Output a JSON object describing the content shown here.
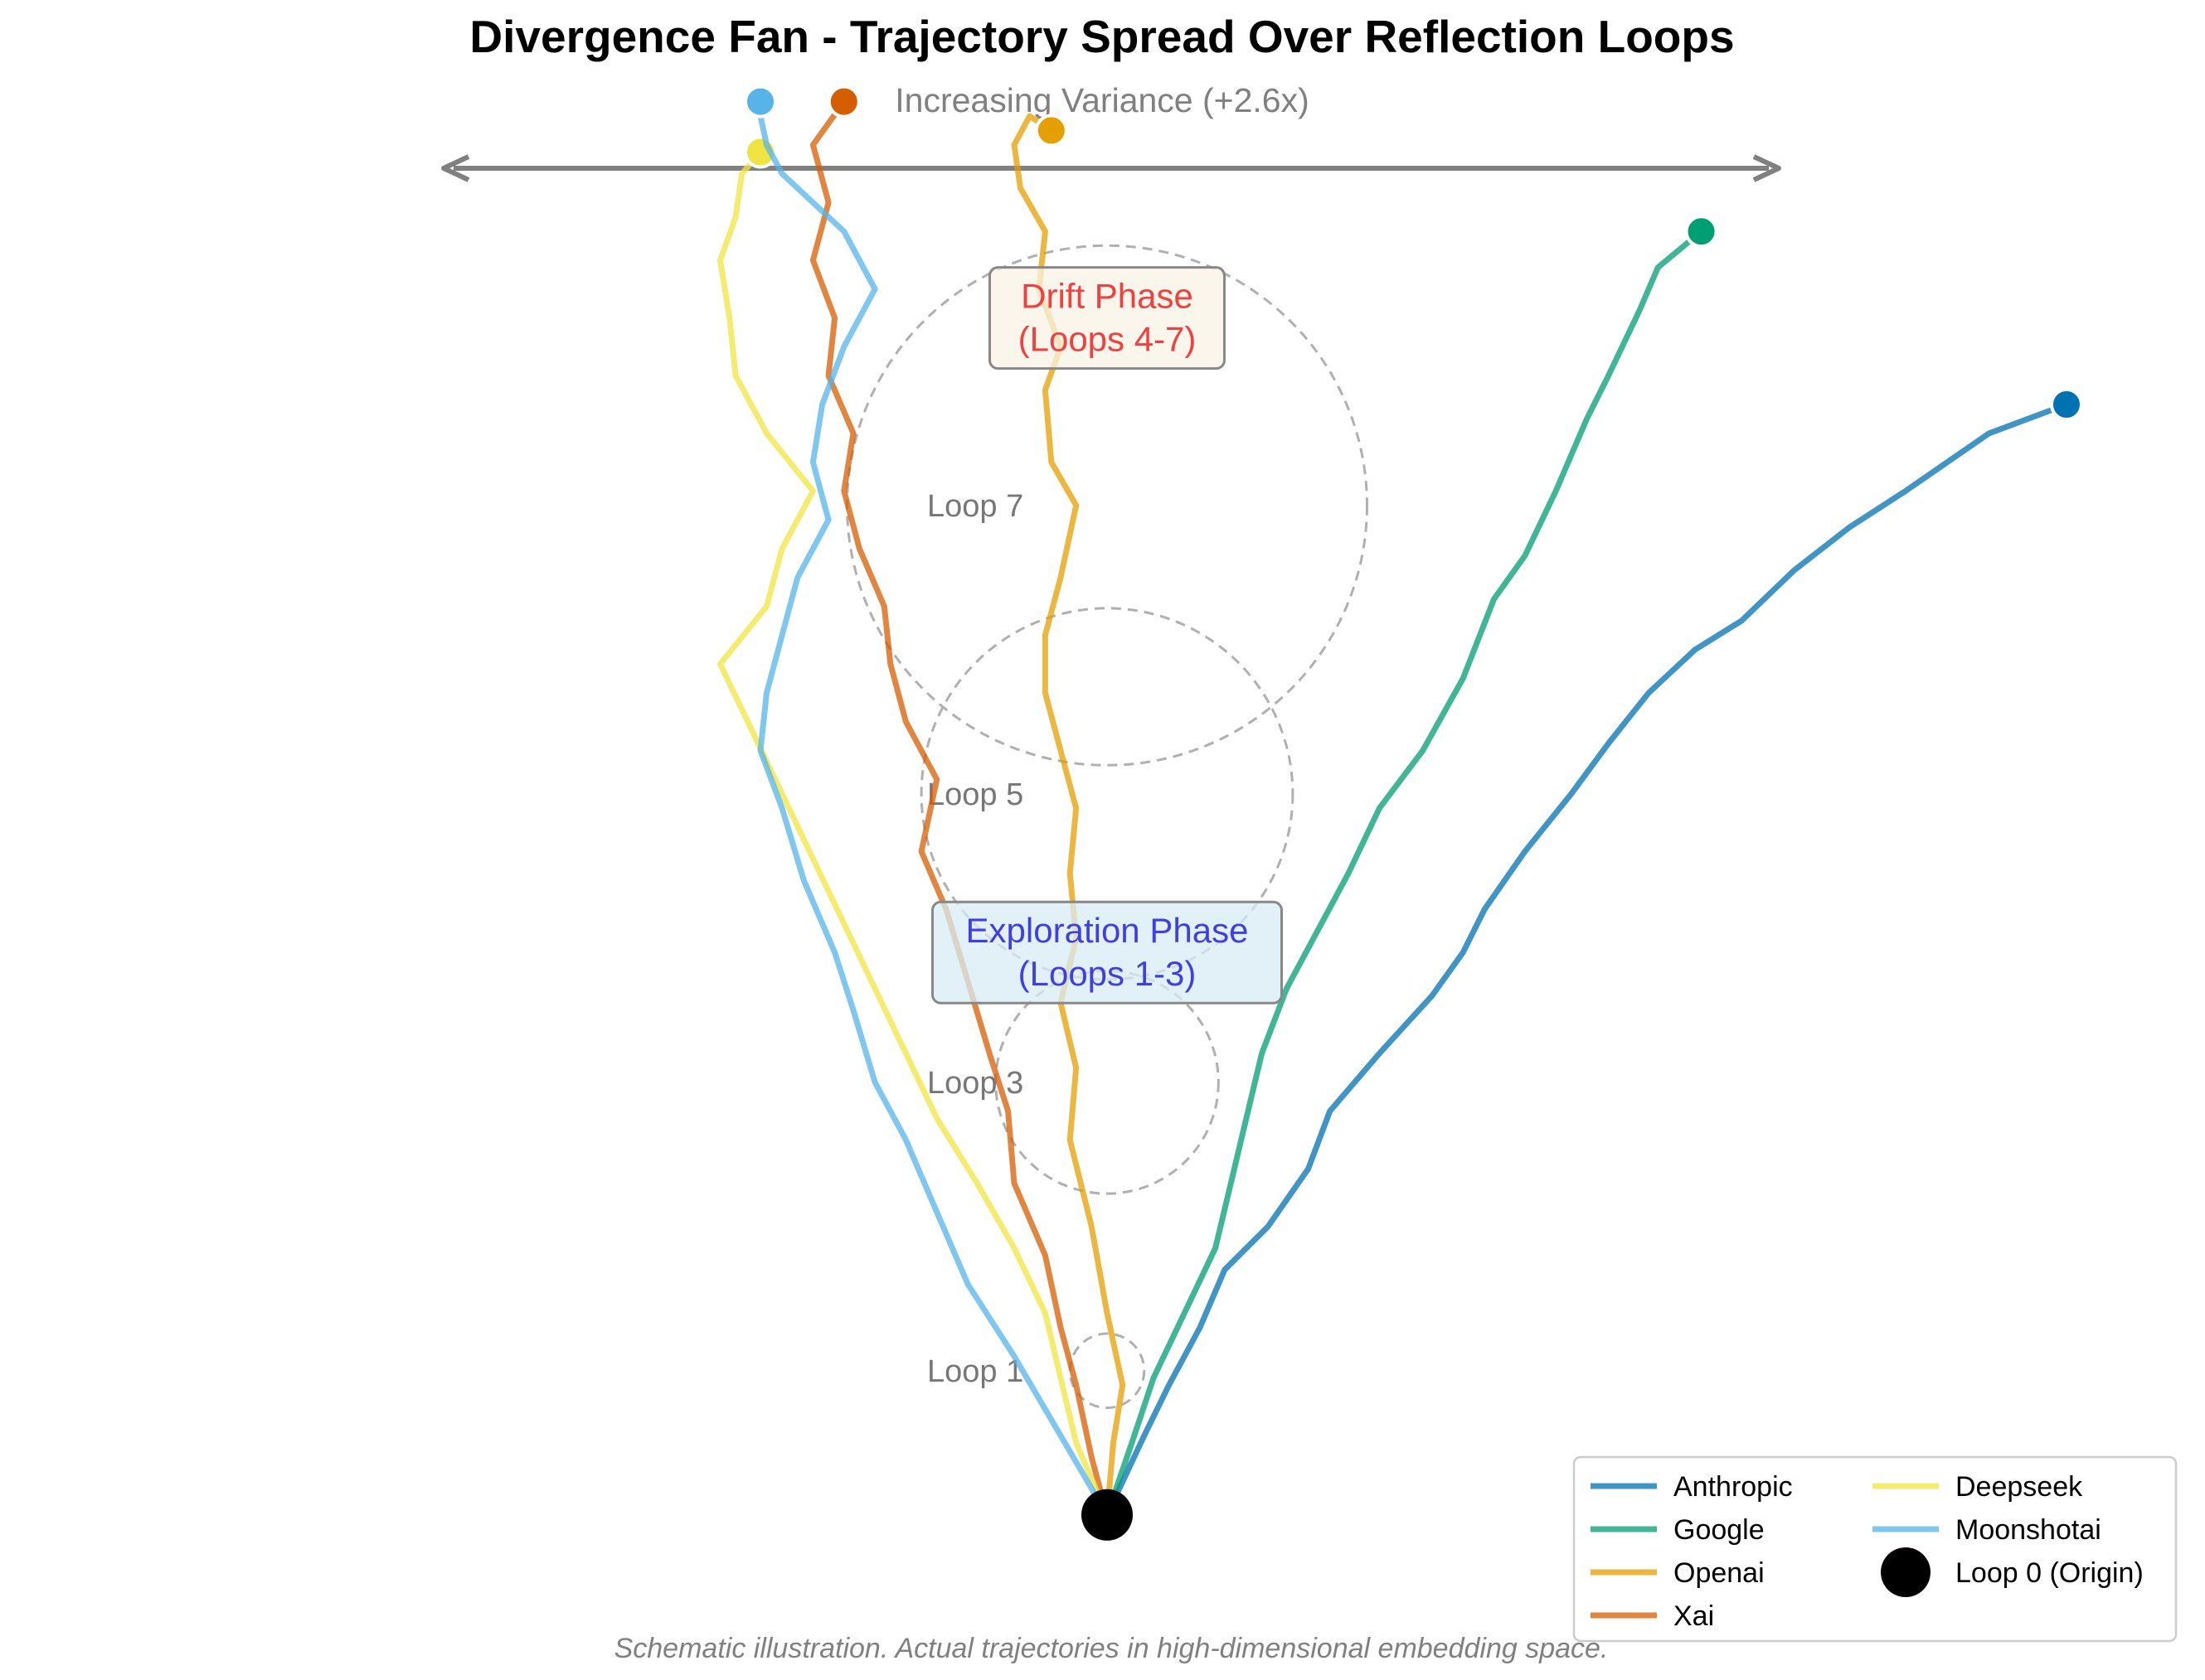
{
  "chart_data": {
    "type": "line",
    "title": "Divergence Fan - Trajectory Spread Over Reflection Loops",
    "xlabel": "",
    "ylabel": "",
    "grid": false,
    "axes_visible": false,
    "legend_position": "lower-right",
    "variance_arrow_label": "Increasing Variance (+2.6x)",
    "caption": "Schematic illustration. Actual trajectories in high-dimensional embedding space.",
    "origin": {
      "label": "Loop 0 (Origin)",
      "x": 0,
      "y": 0
    },
    "loop_markers": [
      {
        "label": "Loop 1",
        "y": 1,
        "spread": 0.12
      },
      {
        "label": "Loop 3",
        "y": 3,
        "spread": 0.36
      },
      {
        "label": "Loop 5",
        "y": 5,
        "spread": 0.6
      },
      {
        "label": "Loop 7",
        "y": 7,
        "spread": 0.84
      }
    ],
    "phase_annotations": [
      {
        "label": "Exploration Phase\n(Loops 1-3)",
        "x": 0,
        "y": 3.9,
        "color": "#4040e0",
        "box_fill": "#d8ecf6"
      },
      {
        "label": "Drift Phase\n(Loops 4-7)",
        "x": 0,
        "y": 8.3,
        "color": "#f04040",
        "box_fill": "#f8f3e6"
      }
    ],
    "xlim": [
      -2.8,
      2.8
    ],
    "ylim": [
      -0.3,
      9.7
    ],
    "series": [
      {
        "name": "Anthropic",
        "color": "#0072b2",
        "x": [
          0,
          0.12,
          0.2,
          0.3,
          0.38,
          0.52,
          0.65,
          0.72,
          0.88,
          1.05,
          1.15,
          1.22,
          1.35,
          1.5,
          1.62,
          1.75,
          1.9,
          2.05,
          2.22,
          2.4,
          2.58,
          2.85,
          3.1
        ],
        "y": [
          0,
          0.55,
          0.9,
          1.3,
          1.7,
          2.0,
          2.4,
          2.8,
          3.2,
          3.6,
          3.9,
          4.2,
          4.6,
          5.0,
          5.35,
          5.7,
          6.0,
          6.2,
          6.55,
          6.85,
          7.1,
          7.5,
          7.7
        ]
      },
      {
        "name": "Google",
        "color": "#009e73",
        "x": [
          0,
          0.08,
          0.15,
          0.25,
          0.35,
          0.4,
          0.45,
          0.5,
          0.58,
          0.68,
          0.78,
          0.88,
          1.02,
          1.15,
          1.25,
          1.35,
          1.45,
          1.55,
          1.62,
          1.72,
          1.78,
          1.92
        ],
        "y": [
          0,
          0.5,
          0.95,
          1.4,
          1.85,
          2.3,
          2.75,
          3.2,
          3.65,
          4.05,
          4.45,
          4.9,
          5.3,
          5.8,
          6.35,
          6.65,
          7.1,
          7.6,
          7.9,
          8.35,
          8.65,
          8.9
        ]
      },
      {
        "name": "Openai",
        "color": "#e69f00",
        "x": [
          0,
          0.02,
          0.05,
          0.0,
          -0.05,
          -0.12,
          -0.1,
          -0.15,
          -0.1,
          -0.12,
          -0.1,
          -0.15,
          -0.2,
          -0.2,
          -0.15,
          -0.1,
          -0.18,
          -0.2,
          -0.15,
          -0.22,
          -0.2,
          -0.28,
          -0.3,
          -0.25,
          -0.18
        ],
        "y": [
          0,
          0.5,
          0.9,
          1.4,
          2.0,
          2.6,
          3.1,
          3.55,
          4.0,
          4.45,
          4.9,
          5.3,
          5.7,
          6.1,
          6.5,
          7.0,
          7.3,
          7.8,
          8.1,
          8.5,
          8.9,
          9.2,
          9.5,
          9.7,
          9.6
        ]
      },
      {
        "name": "Xai",
        "color": "#d55e00",
        "x": [
          0,
          -0.05,
          -0.1,
          -0.15,
          -0.2,
          -0.3,
          -0.32,
          -0.38,
          -0.45,
          -0.52,
          -0.6,
          -0.55,
          -0.65,
          -0.7,
          -0.72,
          -0.8,
          -0.85,
          -0.82,
          -0.9,
          -0.88,
          -0.95,
          -0.9,
          -0.95,
          -0.85
        ],
        "y": [
          0,
          0.4,
          0.9,
          1.3,
          1.8,
          2.3,
          2.8,
          3.2,
          3.7,
          4.2,
          4.6,
          5.1,
          5.5,
          5.9,
          6.3,
          6.7,
          7.1,
          7.5,
          7.9,
          8.3,
          8.7,
          9.1,
          9.5,
          9.8
        ]
      },
      {
        "name": "Deepseek",
        "color": "#f0e442",
        "x": [
          0,
          -0.1,
          -0.15,
          -0.2,
          -0.3,
          -0.42,
          -0.55,
          -0.65,
          -0.75,
          -0.85,
          -0.95,
          -1.05,
          -1.15,
          -1.25,
          -1.1,
          -1.05,
          -0.95,
          -1.1,
          -1.2,
          -1.22,
          -1.25,
          -1.2,
          -1.18,
          -1.12
        ],
        "y": [
          0,
          0.5,
          0.95,
          1.4,
          1.85,
          2.3,
          2.75,
          3.2,
          3.65,
          4.1,
          4.55,
          5.0,
          5.45,
          5.9,
          6.3,
          6.7,
          7.1,
          7.5,
          7.9,
          8.3,
          8.7,
          9.0,
          9.3,
          9.45
        ]
      },
      {
        "name": "Moonshotai",
        "color": "#56b4e9",
        "x": [
          0,
          -0.15,
          -0.3,
          -0.45,
          -0.55,
          -0.65,
          -0.75,
          -0.82,
          -0.88,
          -0.98,
          -1.05,
          -1.12,
          -1.1,
          -1.05,
          -1.0,
          -0.9,
          -0.95,
          -0.92,
          -0.85,
          -0.75,
          -0.85,
          -0.95,
          -1.05,
          -1.1,
          -1.12,
          -1.12
        ],
        "y": [
          0,
          0.55,
          1.1,
          1.6,
          2.1,
          2.6,
          3.0,
          3.5,
          3.9,
          4.4,
          4.9,
          5.3,
          5.7,
          6.1,
          6.5,
          6.9,
          7.3,
          7.7,
          8.1,
          8.5,
          8.9,
          9.1,
          9.3,
          9.5,
          9.7,
          9.8
        ]
      }
    ],
    "legend": [
      {
        "label": "Anthropic",
        "color": "#0072b2",
        "kind": "line"
      },
      {
        "label": "Google",
        "color": "#009e73",
        "kind": "line"
      },
      {
        "label": "Openai",
        "color": "#e69f00",
        "kind": "line"
      },
      {
        "label": "Xai",
        "color": "#d55e00",
        "kind": "line"
      },
      {
        "label": "Deepseek",
        "color": "#f0e442",
        "kind": "line"
      },
      {
        "label": "Moonshotai",
        "color": "#56b4e9",
        "kind": "line"
      },
      {
        "label": "Loop 0 (Origin)",
        "color": "#000000",
        "kind": "marker"
      }
    ]
  }
}
